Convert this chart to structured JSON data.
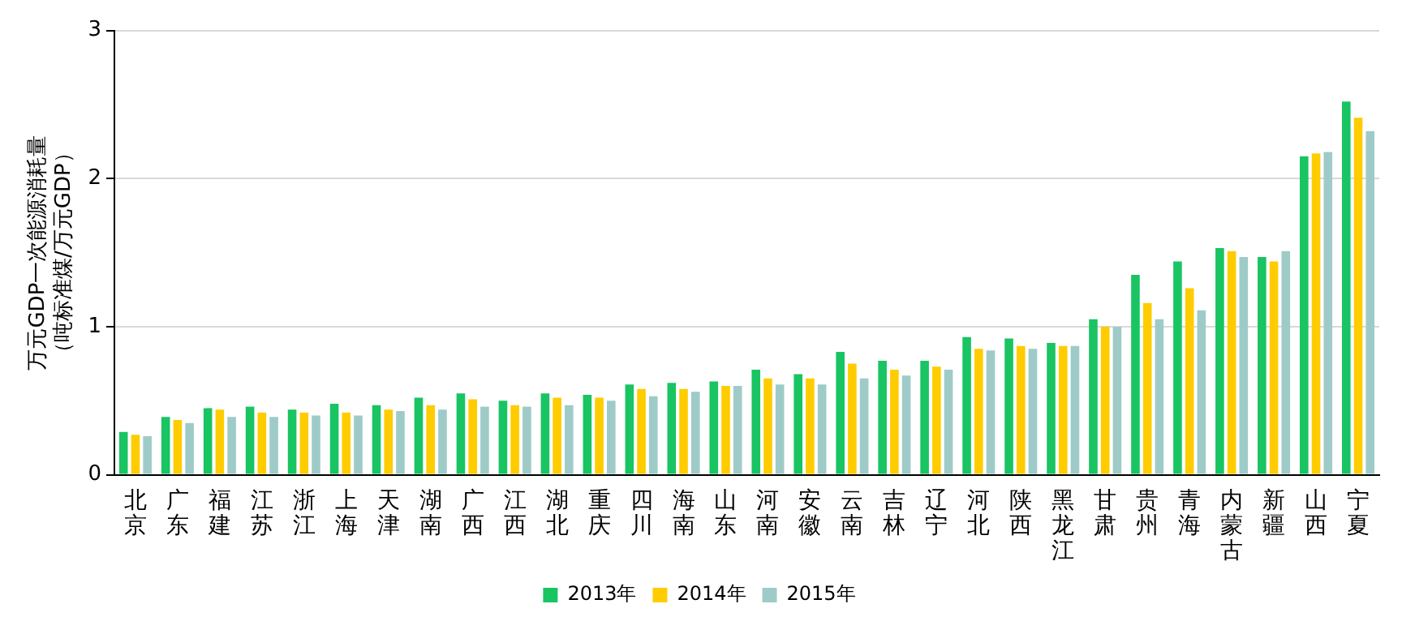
{
  "chart_data": {
    "type": "bar",
    "ylabel": "万元GDP一次能源消耗量（吨标准煤/万元GDP）",
    "categories": [
      "北京",
      "广东",
      "福建",
      "江苏",
      "浙江",
      "上海",
      "天津",
      "湖南",
      "广西",
      "江西",
      "湖北",
      "重庆",
      "四川",
      "海南",
      "山东",
      "河南",
      "安徽",
      "云南",
      "吉林",
      "辽宁",
      "河北",
      "陕西",
      "黑龙江",
      "甘肃",
      "贵州",
      "青海",
      "内蒙古",
      "新疆",
      "山西",
      "宁夏"
    ],
    "series": [
      {
        "name": "2013年",
        "color": "#19c462",
        "values": [
          0.29,
          0.39,
          0.45,
          0.46,
          0.44,
          0.48,
          0.47,
          0.52,
          0.55,
          0.5,
          0.55,
          0.54,
          0.61,
          0.62,
          0.63,
          0.71,
          0.68,
          0.83,
          0.77,
          0.77,
          0.93,
          0.92,
          0.89,
          1.05,
          1.35,
          1.44,
          1.53,
          1.47,
          2.15,
          2.52
        ]
      },
      {
        "name": "2014年",
        "color": "#ffcc00",
        "values": [
          0.27,
          0.37,
          0.44,
          0.42,
          0.42,
          0.42,
          0.44,
          0.47,
          0.51,
          0.47,
          0.52,
          0.52,
          0.58,
          0.58,
          0.6,
          0.65,
          0.65,
          0.75,
          0.71,
          0.73,
          0.85,
          0.87,
          0.87,
          1.0,
          1.16,
          1.26,
          1.51,
          1.44,
          2.17,
          2.41
        ]
      },
      {
        "name": "2015年",
        "color": "#9ecbc8",
        "values": [
          0.26,
          0.35,
          0.39,
          0.39,
          0.4,
          0.4,
          0.43,
          0.44,
          0.46,
          0.46,
          0.47,
          0.5,
          0.53,
          0.56,
          0.6,
          0.61,
          0.61,
          0.65,
          0.67,
          0.71,
          0.84,
          0.85,
          0.87,
          1.0,
          1.05,
          1.11,
          1.47,
          1.51,
          2.18,
          2.32
        ]
      }
    ],
    "ylim": [
      0,
      3
    ],
    "yticks": [
      0,
      1,
      2,
      3
    ],
    "grid": "y",
    "legend": "bottom"
  }
}
